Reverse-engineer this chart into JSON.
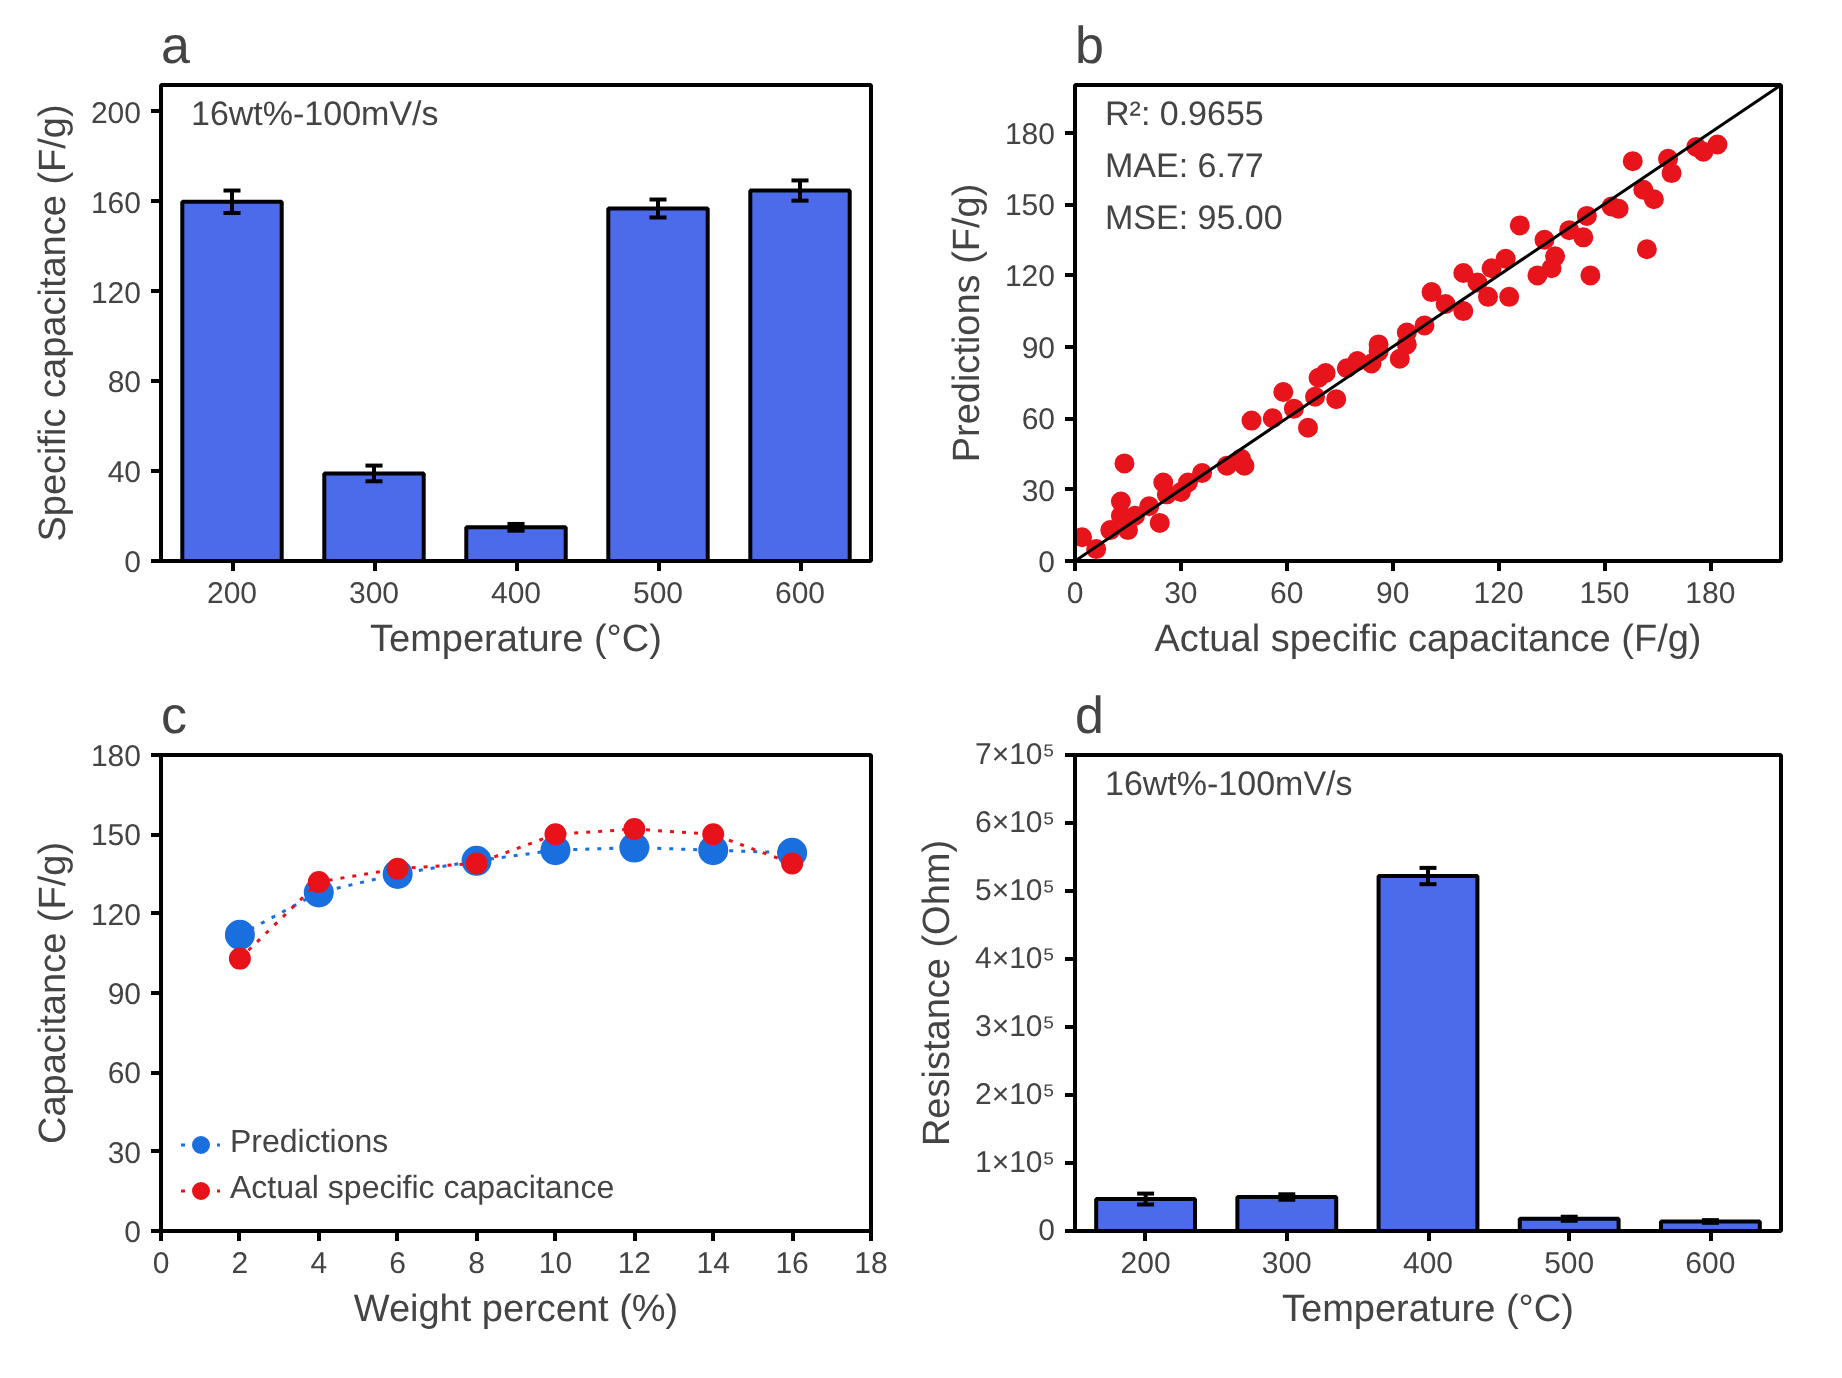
{
  "chart_data": [
    {
      "type": "bar",
      "title": "a",
      "categories": [
        "200",
        "300",
        "400",
        "500",
        "600"
      ],
      "xlabel": "Temperature (°C)",
      "ylabel": "Specific capacitance (F/g)",
      "values": [
        160,
        39,
        15,
        157,
        165
      ],
      "errors": [
        5,
        3.5,
        1.5,
        4,
        4.5
      ],
      "color": "#4b6bea",
      "ylim": [
        0,
        212
      ],
      "yticks": [
        0,
        40,
        80,
        120,
        160,
        200
      ],
      "grid": false,
      "annotations": [
        "16wt%-100mV/s"
      ]
    },
    {
      "type": "scatter",
      "title": "b",
      "xlabel": "Actual specific capacitance (F/g)",
      "ylabel": "Predictions (F/g)",
      "xlim": [
        0,
        200
      ],
      "ylim": [
        0,
        200
      ],
      "xticks": [
        0,
        30,
        60,
        90,
        120,
        150,
        180
      ],
      "yticks": [
        0,
        30,
        60,
        90,
        120,
        150,
        180
      ],
      "grid": false,
      "marker": "circle",
      "annotations": [
        "R²: 0.9655",
        "MAE: 6.77",
        "MSE: 95.00"
      ],
      "series": [
        {
          "color": "#e8141c",
          "x": [
            2,
            6,
            10,
            13,
            14,
            13,
            17,
            21,
            25,
            26,
            32,
            36,
            43,
            48,
            50,
            56,
            59,
            66,
            68,
            71,
            74,
            80,
            86,
            92,
            94,
            99,
            101,
            105,
            110,
            110,
            117,
            123,
            122,
            126,
            131,
            133,
            136,
            140,
            145,
            146,
            152,
            158,
            161,
            162,
            164,
            168,
            169,
            176,
            182,
            30,
            62,
            84,
            114,
            94,
            69,
            47,
            24,
            15,
            144,
            135,
            154,
            178,
            118,
            86,
            77
          ],
          "values": [
            10,
            5,
            13,
            19,
            41,
            25,
            19,
            23,
            33,
            28,
            33,
            37,
            40,
            40,
            59,
            60,
            71,
            56,
            69,
            79,
            68,
            84,
            91,
            85,
            96,
            99,
            113,
            108,
            121,
            105,
            111,
            111,
            127,
            141,
            120,
            135,
            128,
            139,
            145,
            120,
            149,
            168,
            156,
            131,
            152,
            169,
            163,
            174,
            175,
            29,
            64,
            83,
            117,
            91,
            77,
            43,
            16,
            13,
            136,
            123,
            148,
            172,
            123,
            88,
            81
          ]
        },
        {
          "type": "line",
          "marker": "none",
          "color": "#000000",
          "x": [
            0,
            200
          ],
          "values": [
            0,
            200
          ]
        }
      ]
    },
    {
      "type": "line",
      "title": "c",
      "xlabel": "Weight percent (%)",
      "ylabel": "Capacitance (F/g)",
      "x": [
        2,
        4,
        6,
        8,
        10,
        12,
        14,
        16
      ],
      "xlim": [
        0,
        18
      ],
      "ylim": [
        0,
        180
      ],
      "xticks": [
        0,
        2,
        4,
        6,
        8,
        10,
        12,
        14,
        16,
        18
      ],
      "yticks": [
        0,
        30,
        60,
        90,
        120,
        150,
        180
      ],
      "grid": false,
      "marker": "circle",
      "line_style": "dotted",
      "legend": "bottom left",
      "series": [
        {
          "name": "Predictions",
          "color": "#1a6fdf",
          "values": [
            112,
            128,
            135,
            140,
            144,
            145,
            144,
            143
          ]
        },
        {
          "name": "Actual specific capacitance",
          "color": "#e8121a",
          "values": [
            103,
            132,
            137,
            139,
            150,
            152,
            150,
            139
          ]
        }
      ]
    },
    {
      "type": "bar",
      "title": "d",
      "categories": [
        "200",
        "300",
        "400",
        "500",
        "600"
      ],
      "xlabel": "Temperature (°C)",
      "ylabel": "Resistance (Ohm)",
      "values": [
        47000,
        50000,
        522000,
        18000,
        14000
      ],
      "errors": [
        8000,
        4000,
        12000,
        3000,
        2000
      ],
      "color": "#4b6bea",
      "ylim": [
        0,
        700000
      ],
      "yticks": [
        0,
        {
          "value": 100000,
          "label": "1×10⁵"
        },
        {
          "value": 200000,
          "label": "2×10⁵"
        },
        {
          "value": 300000,
          "label": "3×10⁵"
        },
        {
          "value": 400000,
          "label": "4×10⁵"
        },
        {
          "value": 500000,
          "label": "5×10⁵"
        },
        {
          "value": 600000,
          "label": "6×10⁵"
        },
        {
          "value": 700000,
          "label": "7×10⁵"
        }
      ],
      "grid": false,
      "annotations": [
        "16wt%-100mV/s"
      ]
    }
  ]
}
